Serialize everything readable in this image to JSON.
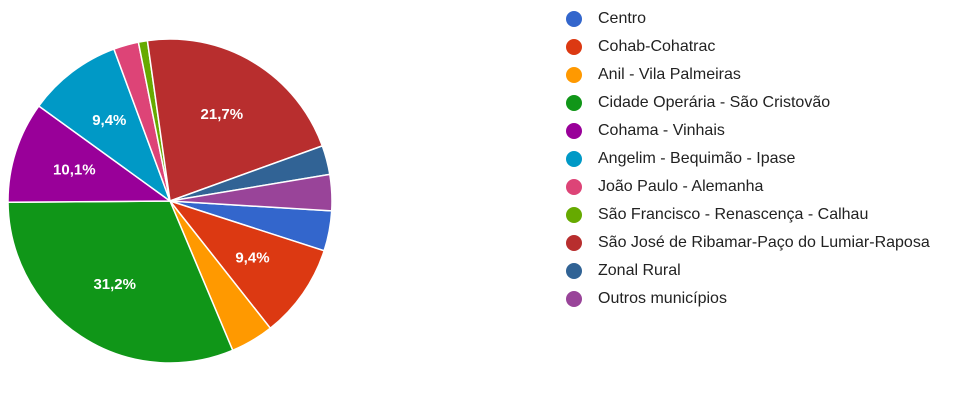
{
  "chart_data": {
    "type": "pie",
    "categories": [
      "Centro",
      "Cohab-Cohatrac",
      "Anil - Vila Palmeiras",
      "Cidade Operária - São Cristovão",
      "Cohama - Vinhais",
      "Angelim - Bequimão - Ipase",
      "João Paulo - Alemanha",
      "São Francisco - Renascença - Calhau",
      "São José de Ribamar-Paço do Lumiar-Raposa",
      "Zonal Rural",
      "Outros municípios"
    ],
    "values": [
      4.0,
      9.4,
      4.3,
      31.2,
      10.1,
      9.4,
      2.5,
      0.9,
      21.7,
      2.9,
      3.6
    ],
    "value_labels": [
      null,
      "9,4%",
      null,
      "31,2%",
      "10,1%",
      "9,4%",
      null,
      null,
      "21,7%",
      null,
      null
    ],
    "colors": [
      "#3366cc",
      "#dc3912",
      "#ff9900",
      "#109618",
      "#990099",
      "#0099c6",
      "#dd4477",
      "#66aa00",
      "#b82e2e",
      "#316395",
      "#994499"
    ]
  }
}
